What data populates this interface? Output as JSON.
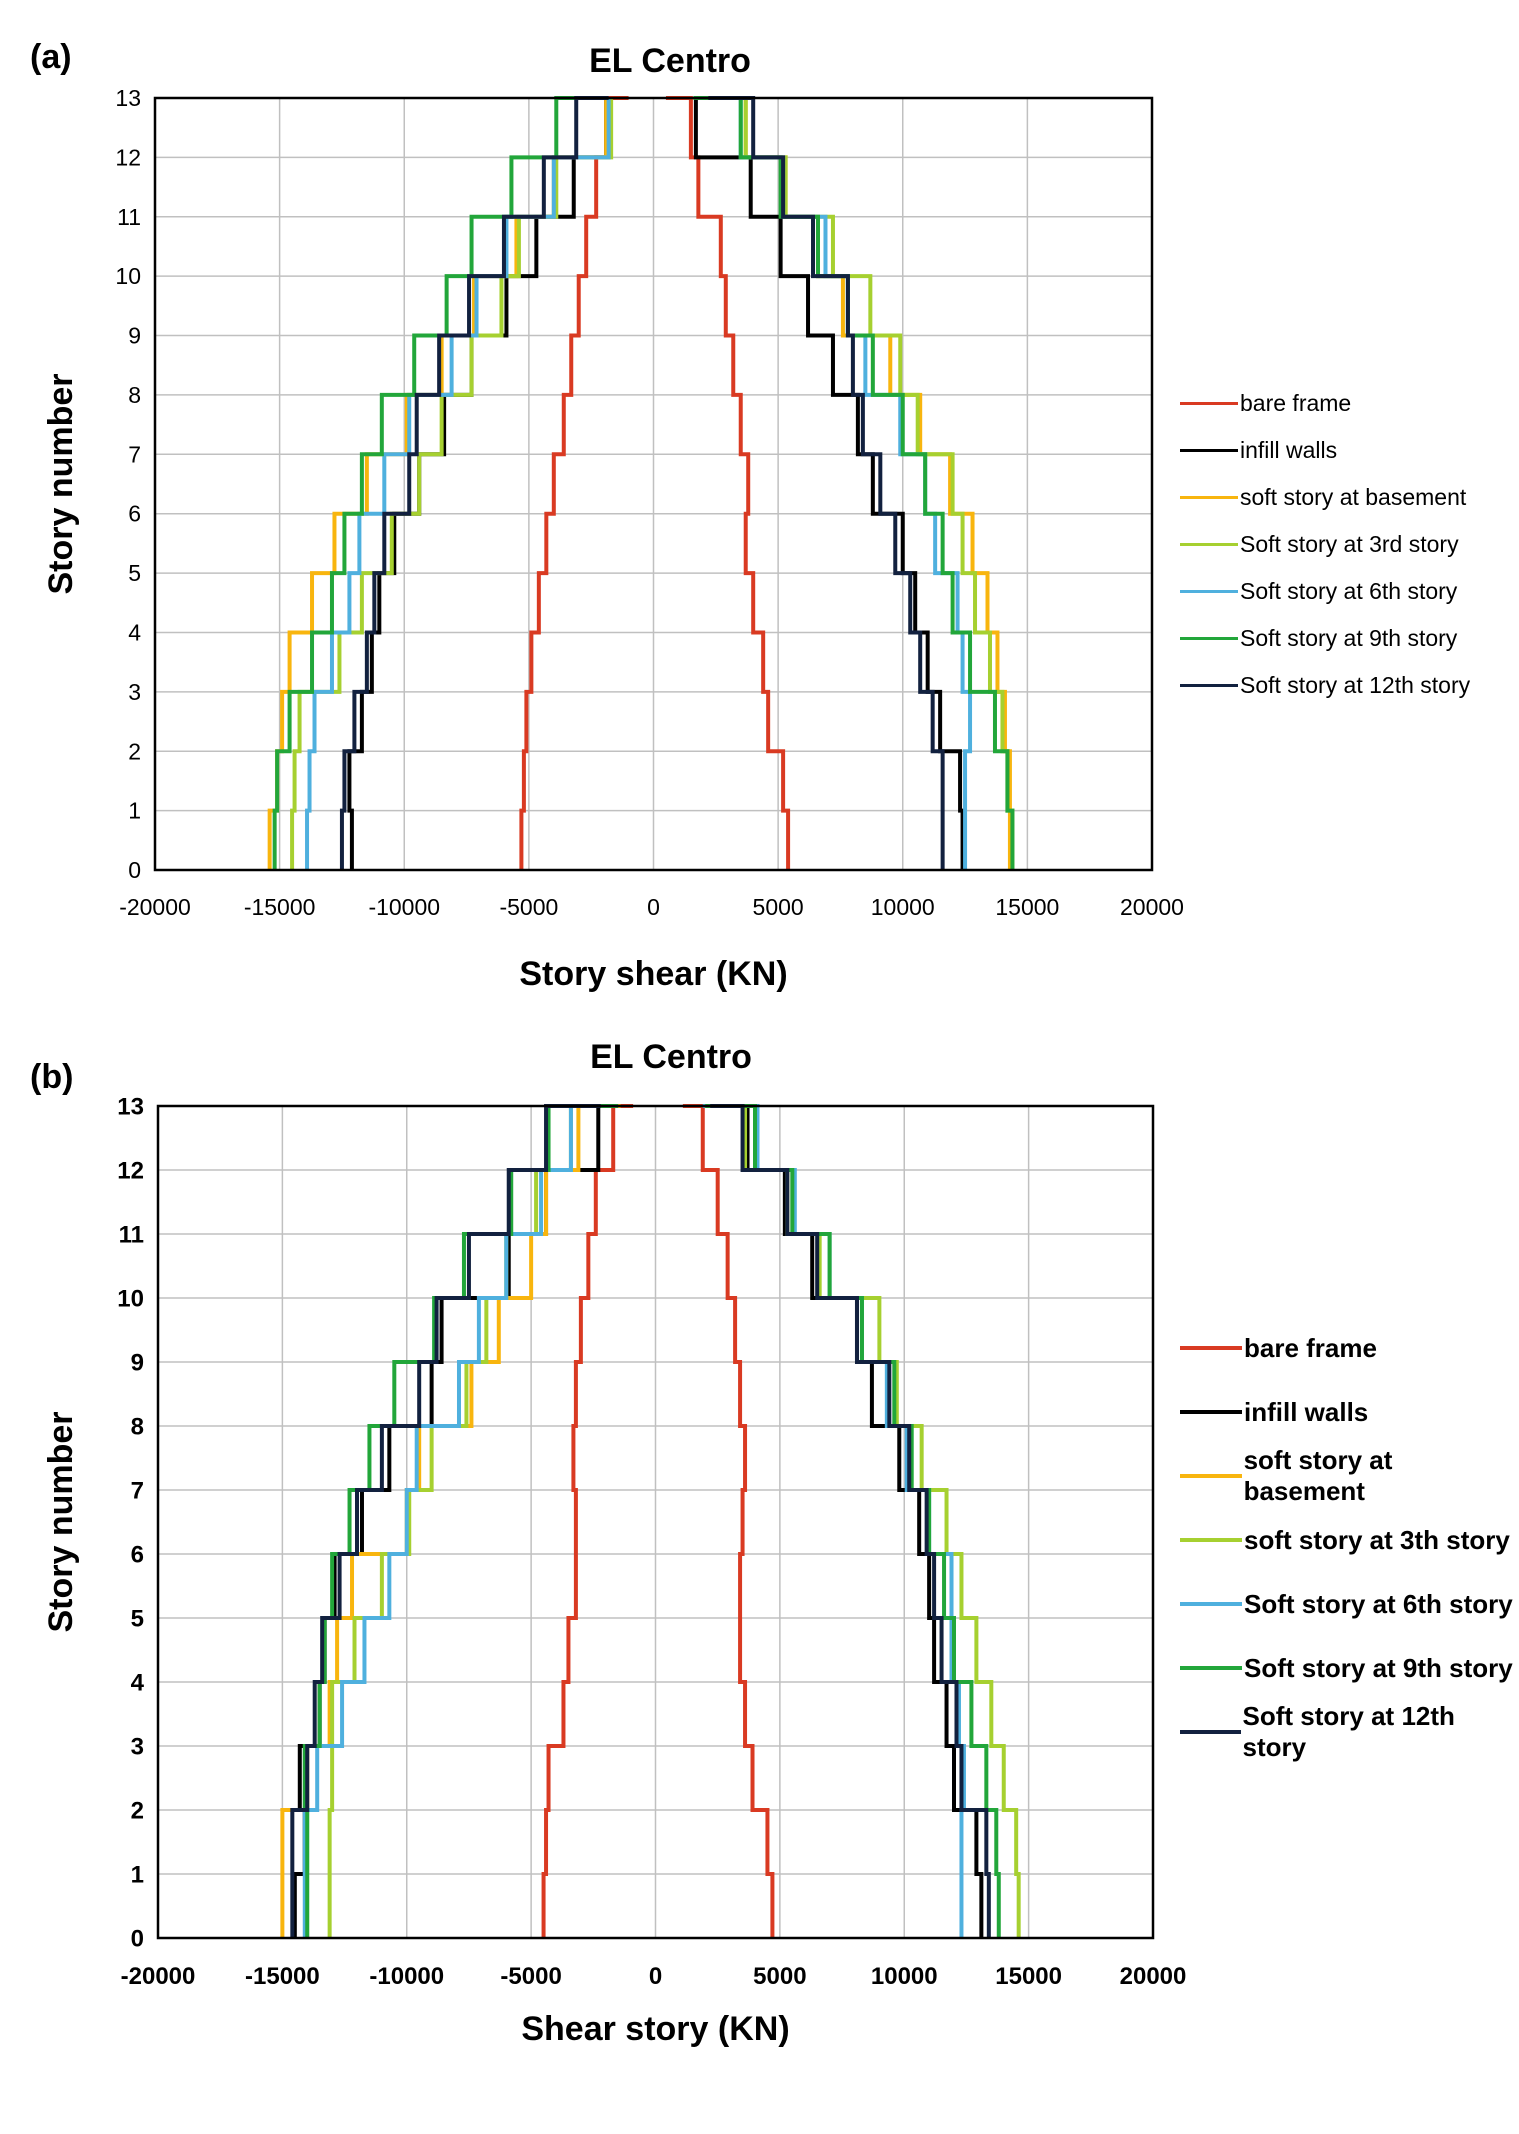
{
  "panels": [
    {
      "label": "(a)",
      "title": "EL Centro",
      "xlabel": "Story shear (KN)",
      "ylabel": "Story number"
    },
    {
      "label": "(b)",
      "title": "EL Centro",
      "xlabel": "Shear story (KN)",
      "ylabel": "Story number"
    }
  ],
  "colors": {
    "bare": "#d93a22",
    "infill": "#000000",
    "basement": "#f8b50e",
    "third": "#a6d030",
    "sixth": "#4fb0de",
    "ninth": "#22a63a",
    "twelfth": "#12213f"
  },
  "chart_data": [
    {
      "type": "line",
      "title": "EL Centro",
      "xlabel": "Story shear (KN)",
      "ylabel": "Story number",
      "xlim": [
        -20000,
        20000
      ],
      "ylim": [
        0,
        13
      ],
      "xticks": [
        -20000,
        -15000,
        -10000,
        -5000,
        0,
        5000,
        10000,
        15000,
        20000
      ],
      "yticks": [
        0,
        1,
        2,
        3,
        4,
        5,
        6,
        7,
        8,
        9,
        10,
        11,
        12,
        13
      ],
      "grid": true,
      "legend": "right",
      "series": [
        {
          "name": "bare frame",
          "color_key": "bare",
          "neg": [
            5300,
            5200,
            5100,
            4900,
            4600,
            4300,
            4000,
            3600,
            3300,
            3000,
            2700,
            2300,
            1800,
            1000
          ],
          "pos": [
            5400,
            5200,
            4600,
            4400,
            4000,
            3700,
            3800,
            3500,
            3200,
            2900,
            2700,
            1800,
            1500,
            500
          ]
        },
        {
          "name": "infill walls",
          "color_key": "infill",
          "neg": [
            12100,
            12200,
            11700,
            11300,
            11000,
            10400,
            9400,
            8400,
            7300,
            5900,
            4700,
            3200,
            1900,
            1900
          ],
          "pos": [
            12400,
            12300,
            11500,
            11000,
            10500,
            10000,
            8800,
            8200,
            7200,
            6200,
            5100,
            3900,
            1700,
            1700
          ]
        },
        {
          "name": "soft story at basement",
          "color_key": "basement",
          "neg": [
            15400,
            15100,
            14900,
            14600,
            13700,
            12800,
            11500,
            9900,
            8500,
            7200,
            5500,
            4000,
            1900,
            1900
          ],
          "pos": [
            14300,
            14300,
            14100,
            13800,
            13400,
            12800,
            11900,
            10700,
            9500,
            7600,
            6600,
            5300,
            3700,
            1800
          ]
        },
        {
          "name": "Soft story at 3rd story",
          "color_key": "third",
          "neg": [
            14500,
            14400,
            14200,
            12600,
            11700,
            10500,
            9400,
            8500,
            7300,
            6100,
            5400,
            3900,
            1700,
            1700
          ],
          "pos": [
            14400,
            14200,
            14000,
            13500,
            12900,
            12400,
            12000,
            10600,
            9900,
            8700,
            7200,
            5300,
            3700,
            1800
          ]
        },
        {
          "name": "Soft story at 6th story",
          "color_key": "sixth",
          "neg": [
            13900,
            13800,
            13600,
            12900,
            12200,
            11800,
            10800,
            9800,
            8100,
            7100,
            5900,
            4000,
            1800,
            1800
          ],
          "pos": [
            12500,
            12500,
            12700,
            12400,
            12200,
            11300,
            10900,
            9900,
            8500,
            7800,
            6900,
            5200,
            3500,
            1800
          ]
        },
        {
          "name": "Soft story at 9th story",
          "color_key": "ninth",
          "neg": [
            15200,
            15100,
            14600,
            13700,
            12900,
            12400,
            11700,
            10900,
            9600,
            8300,
            7300,
            5700,
            3900,
            1900
          ],
          "pos": [
            14400,
            14200,
            13700,
            12700,
            12000,
            11600,
            10900,
            10000,
            8800,
            7800,
            6600,
            5100,
            3500,
            1600
          ]
        },
        {
          "name": "Soft story at 12th story",
          "color_key": "twelfth",
          "neg": [
            12500,
            12400,
            12000,
            11500,
            11200,
            10800,
            9800,
            9500,
            8600,
            7400,
            6000,
            4400,
            3100,
            1800
          ],
          "pos": [
            11600,
            11600,
            11200,
            10700,
            10300,
            9700,
            9100,
            8400,
            8000,
            7800,
            6400,
            5200,
            4000,
            2200
          ]
        }
      ]
    },
    {
      "type": "line",
      "title": "EL Centro",
      "xlabel": "Shear story (KN)",
      "ylabel": "Story number",
      "xlim": [
        -20000,
        20000
      ],
      "ylim": [
        0,
        13
      ],
      "xticks": [
        -20000,
        -15000,
        -10000,
        -5000,
        0,
        5000,
        10000,
        15000,
        20000
      ],
      "yticks": [
        0,
        1,
        2,
        3,
        4,
        5,
        6,
        7,
        8,
        9,
        10,
        11,
        12,
        13
      ],
      "grid": true,
      "legend": "right",
      "series": [
        {
          "name": "bare frame",
          "color_key": "bare",
          "neg": [
            4500,
            4400,
            4300,
            3700,
            3500,
            3200,
            3200,
            3300,
            3200,
            3000,
            2700,
            2400,
            1700,
            900
          ],
          "pos": [
            4700,
            4500,
            3900,
            3600,
            3400,
            3400,
            3500,
            3600,
            3400,
            3200,
            2900,
            2500,
            1900,
            1100
          ]
        },
        {
          "name": "infill walls",
          "color_key": "infill",
          "neg": [
            14500,
            14100,
            14300,
            13500,
            13300,
            12900,
            11800,
            10700,
            9000,
            8600,
            5900,
            4400,
            2300,
            2300
          ],
          "pos": [
            13100,
            12900,
            12000,
            11700,
            11200,
            11000,
            10600,
            9800,
            8700,
            8100,
            6300,
            5200,
            3700,
            2000
          ]
        },
        {
          "name": "soft story at basement",
          "color_key": "basement",
          "neg": [
            15000,
            15000,
            14000,
            13100,
            12800,
            12200,
            10000,
            9500,
            7400,
            6300,
            5000,
            4400,
            3100,
            1400
          ]
        },
        {
          "name": "soft story at 3th story",
          "color_key": "third",
          "neg": [
            13100,
            13100,
            13000,
            13000,
            12100,
            11000,
            9900,
            9000,
            7600,
            6800,
            6000,
            4800,
            3400,
            1700
          ],
          "pos": [
            14600,
            14500,
            14000,
            13500,
            12900,
            12300,
            11700,
            10700,
            9700,
            9000,
            6600,
            5300,
            3600,
            2100
          ]
        },
        {
          "name": "Soft story at 6th story",
          "color_key": "sixth",
          "neg": [
            14100,
            14100,
            13600,
            12600,
            11700,
            10700,
            10000,
            9600,
            7900,
            7100,
            6000,
            4600,
            3400,
            1800
          ],
          "pos": [
            12300,
            12300,
            12400,
            12200,
            11900,
            11900,
            11000,
            10100,
            9300,
            8300,
            7000,
            5600,
            4100,
            1900
          ]
        },
        {
          "name": "Soft story at 9th story",
          "color_key": "ninth",
          "neg": [
            14000,
            14000,
            14100,
            13500,
            13300,
            13000,
            12300,
            11500,
            10500,
            8900,
            7700,
            5800,
            4300,
            1500
          ],
          "pos": [
            13800,
            13700,
            13300,
            12700,
            12000,
            11600,
            11000,
            10300,
            9600,
            8300,
            7000,
            5500,
            4000,
            2000
          ]
        },
        {
          "name": "Soft story at 12th story",
          "color_key": "twelfth",
          "neg": [
            14600,
            14600,
            14000,
            13700,
            13400,
            12700,
            12000,
            11000,
            9500,
            8800,
            7500,
            5900,
            4400,
            2200
          ],
          "pos": [
            13400,
            13300,
            12300,
            12100,
            11500,
            11200,
            10900,
            10200,
            9400,
            8100,
            6500,
            5300,
            3500,
            2200
          ]
        }
      ]
    }
  ]
}
